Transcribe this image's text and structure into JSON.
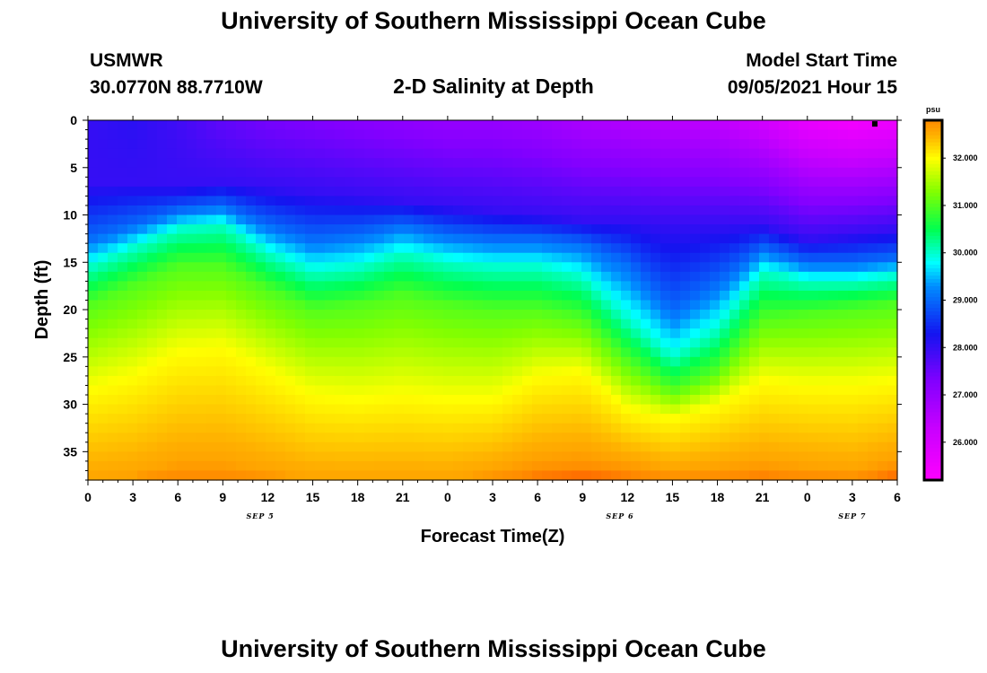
{
  "header": {
    "title_top": "University of Southern Mississippi Ocean Cube",
    "title_bottom": "University of Southern Mississippi Ocean Cube",
    "station_name": "USMWR",
    "station_coords": "30.0770N  88.7710W",
    "subtitle": "2-D Salinity at Depth",
    "model_start_label": "Model Start Time",
    "model_start_value": "09/05/2021 Hour 15"
  },
  "chart_data": {
    "type": "heatmap",
    "title": "2-D Salinity at Depth",
    "xlabel": "Forecast Time(Z)",
    "ylabel": "Depth (ft)",
    "x_range_hours": [
      0,
      54
    ],
    "x_ticks": [
      "0",
      "3",
      "6",
      "9",
      "12",
      "15",
      "18",
      "21",
      "0",
      "3",
      "6",
      "9",
      "12",
      "15",
      "18",
      "21",
      "0",
      "3",
      "6"
    ],
    "date_labels": [
      {
        "text": "SEP 5",
        "hour": 11.5
      },
      {
        "text": "SEP 6",
        "hour": 35.5
      },
      {
        "text": "SEP 7",
        "hour": 51.0
      }
    ],
    "ylim": [
      0,
      38
    ],
    "y_ticks": [
      0,
      5,
      10,
      15,
      20,
      25,
      30,
      35
    ],
    "colorbar": {
      "unit": "psu",
      "range": [
        25.2,
        32.8
      ],
      "ticks": [
        "26.000",
        "27.000",
        "28.000",
        "29.000",
        "30.000",
        "31.000",
        "32.000"
      ],
      "tick_values": [
        26,
        27,
        28,
        29,
        30,
        31,
        32
      ]
    },
    "marker": {
      "hour": 52.5,
      "depth": 0.2
    },
    "isoline_hours": [
      0,
      3,
      6,
      9,
      12,
      15,
      18,
      21,
      24,
      27,
      30,
      33,
      36,
      39,
      42,
      45,
      48,
      51,
      54
    ],
    "isolines_depth_ft": {
      "sal_28": [
        6.5,
        6.5,
        7.0,
        6.5,
        7.0,
        7.5,
        8.0,
        8.5,
        9.0,
        9.5,
        10.0,
        10.5,
        10.5,
        11.0,
        11.0,
        11.0,
        12.5,
        12.0,
        11.5
      ],
      "sal_29": [
        12.5,
        11.0,
        9.5,
        9.0,
        11.0,
        12.5,
        12.0,
        11.0,
        12.0,
        12.5,
        12.5,
        13.0,
        15.0,
        20.0,
        17.0,
        13.5,
        15.0,
        15.0,
        14.5
      ],
      "sal_30": [
        15.5,
        13.5,
        11.5,
        11.0,
        14.0,
        16.0,
        15.5,
        14.0,
        15.0,
        15.5,
        15.5,
        16.5,
        21.0,
        25.0,
        22.0,
        16.0,
        17.0,
        17.0,
        16.5
      ],
      "sal_31": [
        19.5,
        17.5,
        15.5,
        15.5,
        18.0,
        20.0,
        19.5,
        18.5,
        19.5,
        20.0,
        20.0,
        21.0,
        25.5,
        28.5,
        26.5,
        21.0,
        20.5,
        20.0,
        19.5
      ],
      "sal_32": [
        28.5,
        27.0,
        24.5,
        24.0,
        26.5,
        29.0,
        29.5,
        29.0,
        29.5,
        29.5,
        27.0,
        26.5,
        30.5,
        31.5,
        30.0,
        27.5,
        28.0,
        28.0,
        27.5
      ],
      "sal_32_6": [
        38.0,
        37.5,
        36.0,
        36.0,
        37.0,
        38.0,
        38.0,
        38.0,
        38.0,
        37.0,
        35.5,
        35.0,
        36.0,
        37.0,
        36.5,
        36.0,
        36.5,
        37.0,
        35.5
      ]
    },
    "surface_salinity": [
      28.0,
      28.1,
      27.9,
      27.6,
      27.4,
      27.3,
      27.2,
      27.1,
      27.0,
      27.0,
      26.9,
      26.7,
      26.6,
      26.5,
      26.4,
      26.1,
      25.6,
      25.4,
      25.5
    ],
    "bottom_salinity": [
      32.8,
      32.8,
      32.85,
      32.85,
      32.8,
      32.75,
      32.7,
      32.6,
      32.7,
      32.8,
      32.9,
      32.95,
      32.9,
      32.85,
      32.85,
      32.9,
      32.85,
      32.85,
      32.95
    ]
  }
}
